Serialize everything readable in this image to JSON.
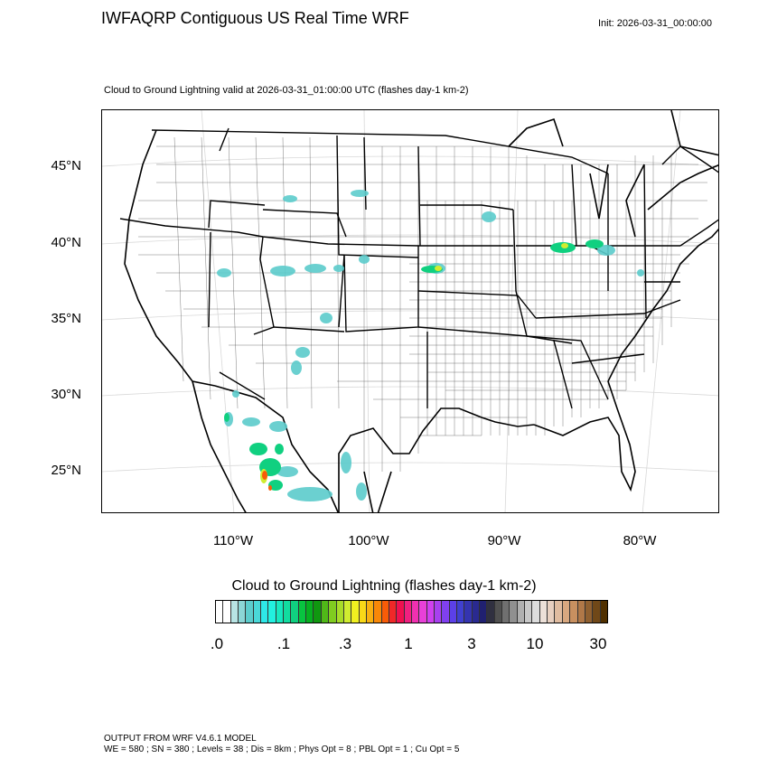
{
  "header": {
    "title": "IWFAQRP Contiguous US Real Time WRF",
    "init": "Init: 2026-03-31_00:00:00",
    "subtitle": "Cloud to Ground Lightning valid at 2026-03-31_01:00:00 UTC   (flashes day-1 km-2)"
  },
  "map": {
    "lat_labels": [
      "45°N",
      "40°N",
      "35°N",
      "30°N",
      "25°N"
    ],
    "lon_labels": [
      "110°W",
      "100°W",
      "90°W",
      "80°W"
    ],
    "projection": "Lambert conformal",
    "features": [
      "state boundaries",
      "county boundaries",
      "coastlines",
      "lat/lon grid"
    ]
  },
  "colorbar": {
    "title": "Cloud to Ground Lightning  (flashes day-1 km-2)",
    "labels": [
      ".0",
      ".1",
      ".3",
      "1",
      "3",
      "10",
      "30"
    ],
    "colors": [
      "#ffffff",
      "#ffffff",
      "#b8e4e4",
      "#8cd6d6",
      "#5ccccc",
      "#4ad8d8",
      "#2ee8e8",
      "#22f0e0",
      "#16e8c0",
      "#12dca0",
      "#10d080",
      "#08c440",
      "#06b020",
      "#109810",
      "#50b818",
      "#80cc20",
      "#a8dc28",
      "#d0ec30",
      "#f0f020",
      "#f8d818",
      "#f8b010",
      "#f88808",
      "#f85c08",
      "#f02828",
      "#f01050",
      "#f02080",
      "#f030b0",
      "#e840d8",
      "#d040f0",
      "#a840f0",
      "#8040f0",
      "#5c40e8",
      "#4040d0",
      "#3434b0",
      "#2a2a90",
      "#202070",
      "#303040",
      "#505050",
      "#707070",
      "#909090",
      "#b0b0b0",
      "#c8c8c8",
      "#dcdcdc",
      "#ece0d8",
      "#e8d0c0",
      "#e0bca0",
      "#d8a880",
      "#c89060",
      "#b07848",
      "#906030",
      "#704818",
      "#503000"
    ]
  },
  "footer": {
    "line1": "OUTPUT FROM WRF V4.6.1 MODEL",
    "line2": "WE = 580 ; SN = 380 ; Levels = 38 ; Dis = 8km ; Phys Opt = 8 ; PBL Opt = 1 ; Cu Opt = 5"
  }
}
